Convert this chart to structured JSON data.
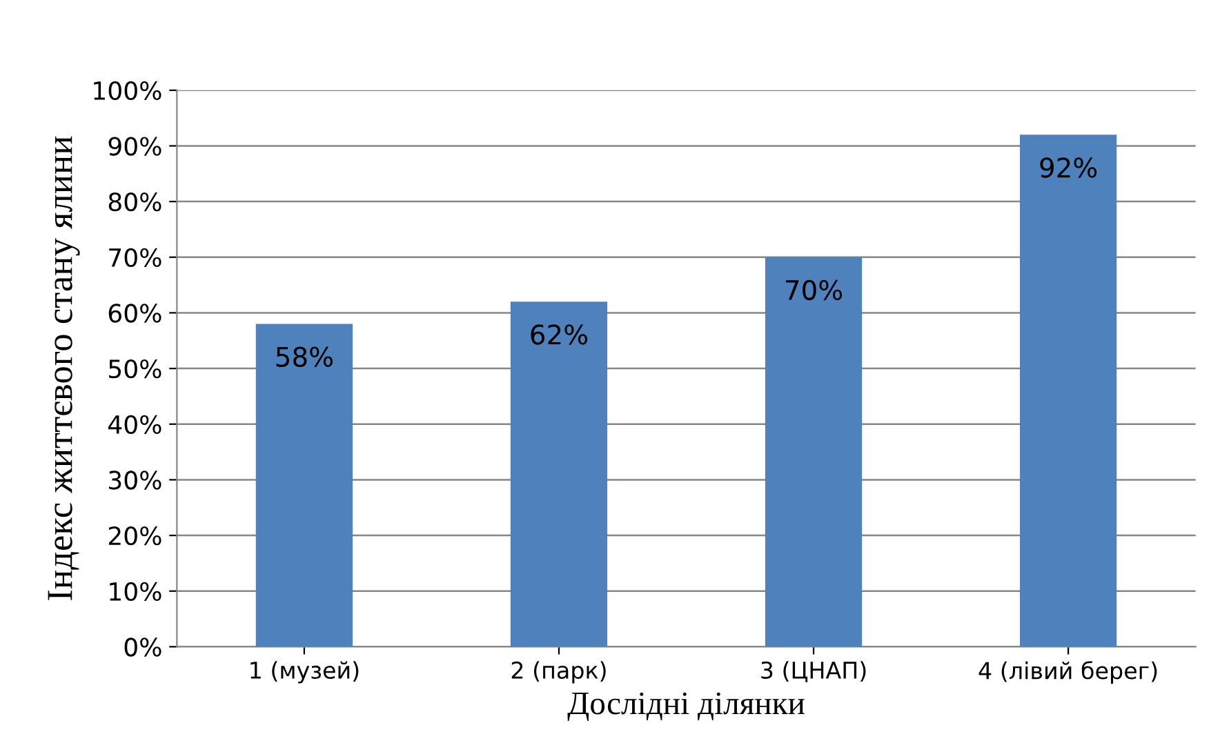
{
  "chart_data": {
    "type": "bar",
    "categories": [
      "1 (музей)",
      "2 (парк)",
      "3 (ЦНАП)",
      "4 (лівий берег)"
    ],
    "values": [
      58,
      62,
      70,
      92
    ],
    "value_labels": [
      "58%",
      "62%",
      "70%",
      "92%"
    ],
    "color": "#4f81bd",
    "xlabel": "Дослідні ділянки",
    "ylabel": "Індекс життєвого стану ялини",
    "ylim": [
      0,
      100
    ],
    "yticks": [
      {
        "value": 0,
        "label": "0%"
      },
      {
        "value": 10,
        "label": "10%"
      },
      {
        "value": 20,
        "label": "20%"
      },
      {
        "value": 30,
        "label": "30%"
      },
      {
        "value": 40,
        "label": "40%"
      },
      {
        "value": 50,
        "label": "50%"
      },
      {
        "value": 60,
        "label": "60%"
      },
      {
        "value": 70,
        "label": "70%"
      },
      {
        "value": 80,
        "label": "80%"
      },
      {
        "value": 90,
        "label": "90%"
      },
      {
        "value": 100,
        "label": "100%"
      }
    ],
    "grid": "y",
    "legend": false
  }
}
